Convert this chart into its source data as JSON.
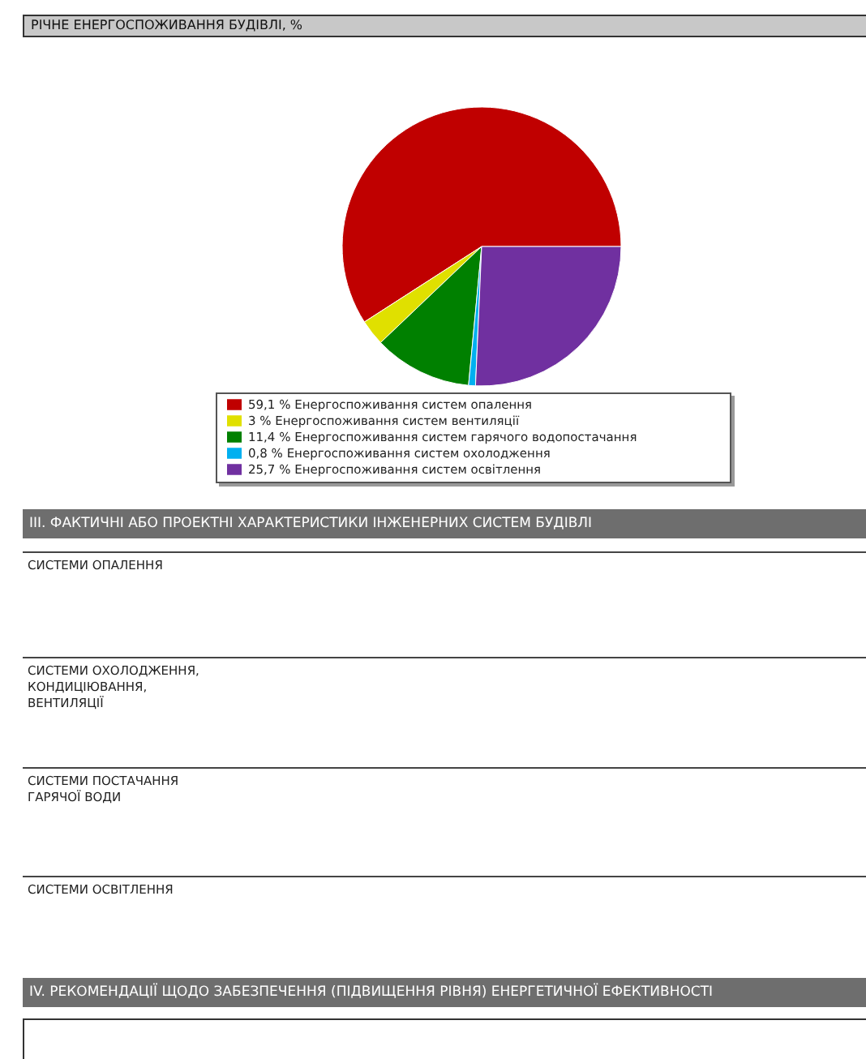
{
  "chart_data": {
    "type": "pie",
    "title": "РІЧНЕ ЕНЕРГОСПОЖИВАННЯ БУДІВЛІ, %",
    "categories": [
      "Енергоспоживання систем опалення",
      "Енергоспоживання систем вентиляції",
      "Енергоспоживання систем гарячого водопостачання",
      "Енергоспоживання систем охолодження",
      "Енергоспоживання систем освітлення"
    ],
    "values": [
      59.1,
      3,
      11.4,
      0.8,
      25.7
    ],
    "value_labels": [
      "59,1 %",
      "3 %",
      "11,4 %",
      "0,8 %",
      "25,7 %"
    ],
    "colors": [
      "#c00000",
      "#e0e000",
      "#008000",
      "#00b0f0",
      "#7030a0"
    ],
    "legend": "bottom",
    "annotations": [
      "III. ФАКТИЧНІ АБО ПРОЕКТНІ ХАРАКТЕРИСТИКИ ІНЖЕНЕРНИХ СИСТЕМ БУДІВЛІ",
      "СИСТЕМИ ОПАЛЕННЯ",
      "СИСТЕМИ ОХОЛОДЖЕННЯ, КОНДИЦІЮВАННЯ, ВЕНТИЛЯЦІЇ",
      "СИСТЕМИ ПОСТАЧАННЯ ГАРЯЧОЇ ВОДИ",
      "СИСТЕМИ ОСВІТЛЕННЯ",
      "IV. РЕКОМЕНДАЦІЇ ЩОДО ЗАБЕЗПЕЧЕННЯ (ПІДВИЩЕННЯ РІВНЯ) ЕНЕРГЕТИЧНОЇ ЕФЕКТИВНОСТІ"
    ]
  }
}
